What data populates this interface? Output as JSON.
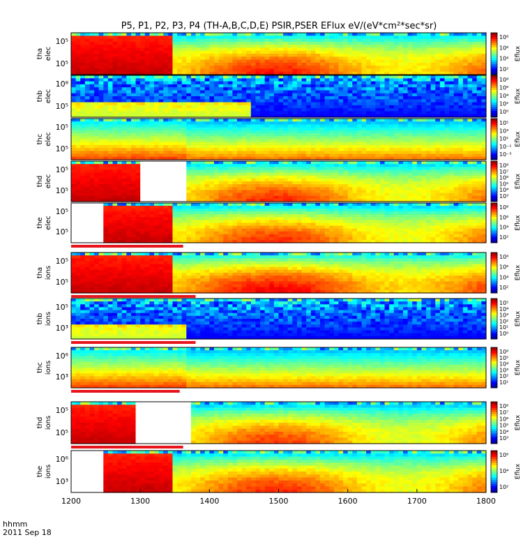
{
  "chart_data": {
    "type": "heatmap",
    "title": "P5, P1, P2, P3, P4 (TH-A,B,C,D,E) PSIR,PSER EFlux eV/(eV*cm²*sec*sr)",
    "x_ticks": [
      "1200",
      "1300",
      "1400",
      "1500",
      "1600",
      "1700",
      "1800"
    ],
    "xlim": [
      1200,
      1800
    ],
    "xlabel_lines": [
      "hhmm",
      "2011 Sep 18"
    ],
    "colorbar_label": "Eflux",
    "panels": [
      {
        "id": "tha-elec",
        "ylabel": [
          "tha",
          "elec"
        ],
        "yticks": [
          "10⁵",
          "10⁵"
        ],
        "cb_ticks": [
          "10⁸",
          "10⁶",
          "10⁴",
          "10²"
        ],
        "style": "smooth",
        "base": 0.72,
        "dropout": null,
        "flag_bar_end": null,
        "cut": 1345
      },
      {
        "id": "thb-elec",
        "ylabel": [
          "thb",
          "elec"
        ],
        "yticks": [
          "10⁸",
          "10⁵"
        ],
        "cb_ticks": [
          "10⁸",
          "10⁶",
          "10⁴",
          "10²",
          "10⁰"
        ],
        "style": "noisy",
        "base": 0.3,
        "dropout": null,
        "flag_bar_end": null,
        "cut": 1460
      },
      {
        "id": "thc-elec",
        "ylabel": [
          "thc",
          "elec"
        ],
        "yticks": [
          "10⁵",
          "10⁵"
        ],
        "cb_ticks": [
          "10⁵",
          "10³",
          "10¹",
          "10⁻¹",
          "10⁻³"
        ],
        "style": "bands",
        "base": 0.5,
        "dropout": null,
        "flag_bar_end": null,
        "cut": 1368
      },
      {
        "id": "thd-elec",
        "ylabel": [
          "thd",
          "elec"
        ],
        "yticks": [
          "10⁵",
          "10⁵"
        ],
        "cb_ticks": [
          "10⁸",
          "10⁷",
          "10⁶",
          "10⁵",
          "10⁴",
          "10³"
        ],
        "style": "smooth",
        "base": 0.7,
        "dropout": [
          1297,
          1368
        ],
        "flag_bar_end": null,
        "cut": 1368
      },
      {
        "id": "the-elec",
        "ylabel": [
          "the",
          "elec"
        ],
        "yticks": [
          "10⁵",
          "10⁵"
        ],
        "cb_ticks": [
          "10⁸",
          "10⁶",
          "10⁴",
          "10²"
        ],
        "style": "smooth",
        "base": 0.7,
        "dropout": [
          1200,
          1247
        ],
        "flag_bar_end": 1362,
        "cut": 1350
      },
      {
        "id": "tha-ions",
        "ylabel": [
          "tha",
          "ions"
        ],
        "yticks": [
          "10⁵",
          "10⁵"
        ],
        "cb_ticks": [
          "10⁸",
          "10⁶",
          "10⁴",
          "10²"
        ],
        "style": "smooth",
        "base": 0.75,
        "dropout": null,
        "flag_bar_end": 1380,
        "cut": 1347
      },
      {
        "id": "thb-ions",
        "ylabel": [
          "thb",
          "ions"
        ],
        "yticks": [
          "10⁵",
          "10³"
        ],
        "cb_ticks": [
          "10⁵",
          "10⁴",
          "10³",
          "10²",
          "10¹",
          "10⁰"
        ],
        "style": "noisy",
        "base": 0.25,
        "dropout": null,
        "flag_bar_end": 1380,
        "cut": 1368
      },
      {
        "id": "thc-ions",
        "ylabel": [
          "thc",
          "ions"
        ],
        "yticks": [
          "10⁶",
          "10³"
        ],
        "cb_ticks": [
          "10⁶",
          "10⁵",
          "10⁴",
          "10³",
          "10²",
          "10¹"
        ],
        "style": "bands",
        "base": 0.45,
        "dropout": null,
        "flag_bar_end": 1357,
        "cut": 1368
      },
      {
        "id": "thd-ions",
        "ylabel": [
          "thd",
          "ions"
        ],
        "yticks": [
          "10⁵",
          "10⁵"
        ],
        "cb_ticks": [
          "10⁸",
          "10⁷",
          "10⁶",
          "10⁵",
          "10⁴",
          "10³"
        ],
        "style": "smooth",
        "base": 0.68,
        "dropout": [
          1293,
          1370
        ],
        "flag_bar_end": 1362,
        "cut": 1370
      },
      {
        "id": "the-ions",
        "ylabel": [
          "the",
          "ions"
        ],
        "yticks": [
          "10⁶",
          "10³"
        ],
        "cb_ticks": [
          "10⁶",
          "10⁴",
          "10²"
        ],
        "style": "smooth",
        "base": 0.7,
        "dropout": [
          1200,
          1247
        ],
        "flag_bar_end": null,
        "cut": 1350
      }
    ]
  }
}
